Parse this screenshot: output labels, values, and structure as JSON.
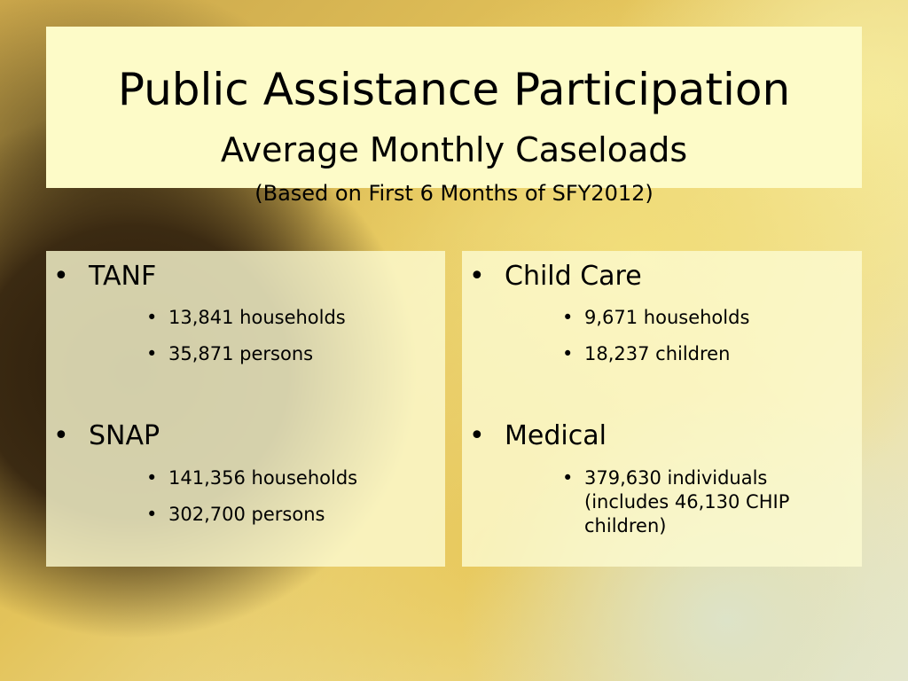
{
  "title": {
    "main": "Public Assistance Participation",
    "sub": "Average Monthly Caseloads",
    "note": "(Based on First 6 Months of SFY2012)"
  },
  "left": {
    "programs": [
      {
        "name": "TANF",
        "items": [
          "13,841 households",
          "35,871 persons"
        ]
      },
      {
        "name": "SNAP",
        "items": [
          "141,356 households",
          "302,700 persons"
        ]
      }
    ]
  },
  "right": {
    "programs": [
      {
        "name": "Child Care",
        "items": [
          "9,671 households",
          "18,237 children"
        ]
      },
      {
        "name": "Medical",
        "items": [
          "379,630 individuals (includes 46,130 CHIP children)"
        ]
      }
    ]
  },
  "bullet": "•"
}
